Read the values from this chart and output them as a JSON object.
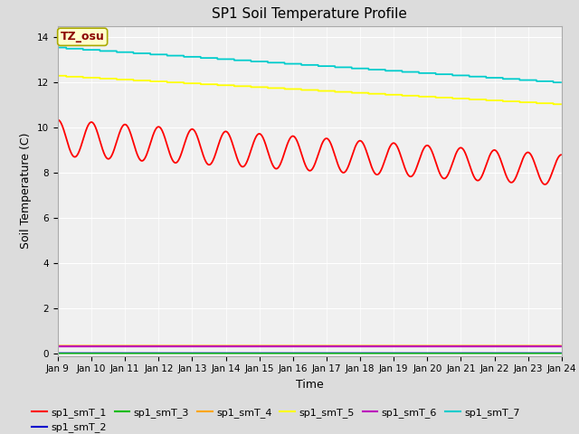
{
  "title": "SP1 Soil Temperature Profile",
  "xlabel": "Time",
  "ylabel": "Soil Temperature (C)",
  "annotation_text": "TZ_osu",
  "annotation_color": "#8B0000",
  "annotation_bg": "#FFFFCC",
  "annotation_border": "#AAAA00",
  "ylim": [
    -0.1,
    14.5
  ],
  "duration_days": 15,
  "n_points": 4000,
  "series_order": [
    "sp1_smT_1",
    "sp1_smT_2",
    "sp1_smT_3",
    "sp1_smT_4",
    "sp1_smT_5",
    "sp1_smT_6",
    "sp1_smT_7"
  ],
  "series": {
    "sp1_smT_1": {
      "color": "#FF0000",
      "base": 9.55,
      "amplitude": 0.8,
      "trend": -0.095,
      "phase": 1.5707963,
      "lw": 1.3
    },
    "sp1_smT_2": {
      "color": "#0000CC",
      "base": 0.03,
      "amplitude": 0.0,
      "trend": 0.0,
      "lw": 1.0
    },
    "sp1_smT_3": {
      "color": "#00BB00",
      "base": 0.01,
      "amplitude": 0.0,
      "trend": 0.0,
      "lw": 1.0
    },
    "sp1_smT_4": {
      "color": "#FFA500",
      "base": 0.35,
      "amplitude": 0.0,
      "trend": 0.0,
      "lw": 1.3
    },
    "sp1_smT_5": {
      "color": "#FFFF00",
      "base": 12.3,
      "amplitude": 0.0,
      "trend": -0.084,
      "lw": 1.3
    },
    "sp1_smT_6": {
      "color": "#BB00BB",
      "base": 0.32,
      "amplitude": 0.0,
      "trend": 0.0,
      "lw": 1.5
    },
    "sp1_smT_7": {
      "color": "#00CCCC",
      "base": 13.55,
      "amplitude": 0.0,
      "trend": -0.103,
      "lw": 1.3
    }
  },
  "tick_labels": [
    "Jan 9",
    "Jan 10",
    "Jan 11",
    "Jan 12",
    "Jan 13",
    "Jan 14",
    "Jan 15",
    "Jan 16",
    "Jan 17",
    "Jan 18",
    "Jan 19",
    "Jan 20",
    "Jan 21",
    "Jan 22",
    "Jan 23",
    "Jan 24"
  ],
  "tick_positions": [
    0,
    1,
    2,
    3,
    4,
    5,
    6,
    7,
    8,
    9,
    10,
    11,
    12,
    13,
    14,
    15
  ],
  "yticks": [
    0,
    2,
    4,
    6,
    8,
    10,
    12,
    14
  ],
  "bg_color": "#DCDCDC",
  "plot_bg": "#F0F0F0",
  "grid_color": "#FFFFFF",
  "title_fontsize": 11,
  "axis_label_fontsize": 9,
  "tick_fontsize": 7.5,
  "legend_fontsize": 8
}
